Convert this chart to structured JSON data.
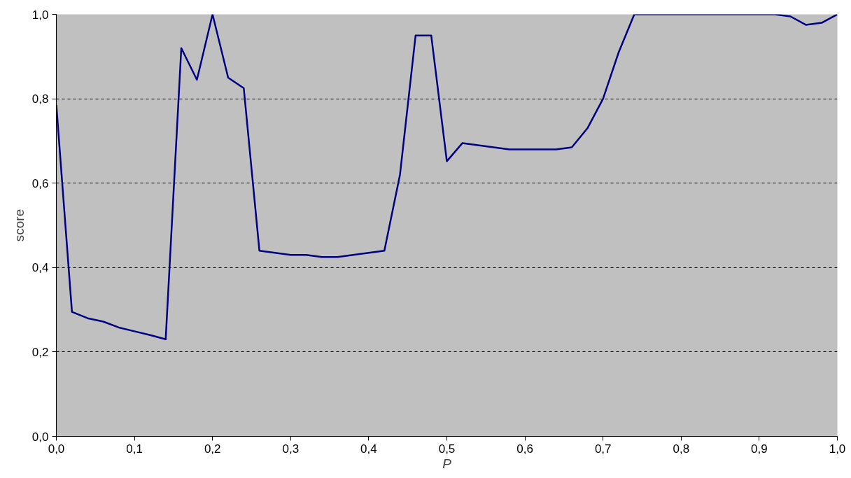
{
  "chart_data": {
    "type": "line",
    "xlabel": "P",
    "ylabel": "score",
    "x": [
      0,
      0.02,
      0.04,
      0.06,
      0.08,
      0.1,
      0.12,
      0.14,
      0.16,
      0.18,
      0.2,
      0.22,
      0.24,
      0.26,
      0.28,
      0.3,
      0.32,
      0.34,
      0.36,
      0.38,
      0.4,
      0.42,
      0.44,
      0.46,
      0.48,
      0.5,
      0.52,
      0.54,
      0.56,
      0.58,
      0.6,
      0.62,
      0.64,
      0.66,
      0.68,
      0.7,
      0.72,
      0.74,
      0.76,
      0.78,
      0.8,
      0.82,
      0.84,
      0.86,
      0.88,
      0.9,
      0.92,
      0.94,
      0.96,
      0.98,
      1.0
    ],
    "series": [
      {
        "color": "#000080",
        "values": [
          0.785,
          0.295,
          0.28,
          0.272,
          0.258,
          0.249,
          0.24,
          0.23,
          0.92,
          0.845,
          1.0,
          0.85,
          0.825,
          0.44,
          0.435,
          0.43,
          0.43,
          0.425,
          0.425,
          0.43,
          0.435,
          0.44,
          0.62,
          0.95,
          0.95,
          0.652,
          0.695,
          0.69,
          0.685,
          0.68,
          0.68,
          0.68,
          0.68,
          0.685,
          0.73,
          0.8,
          0.91,
          1.0,
          1.0,
          1.0,
          1.0,
          1.0,
          1.0,
          1.0,
          1.0,
          1.0,
          1.0,
          0.995,
          0.975,
          0.98,
          1.0
        ]
      }
    ],
    "xlim": [
      0,
      1
    ],
    "ylim": [
      0,
      1
    ],
    "xticks": [
      {
        "value": 0,
        "label": "0,0"
      },
      {
        "value": 0.1,
        "label": "0,1"
      },
      {
        "value": 0.2,
        "label": "0,2"
      },
      {
        "value": 0.3,
        "label": "0,3"
      },
      {
        "value": 0.4,
        "label": "0,4"
      },
      {
        "value": 0.5,
        "label": "0,5"
      },
      {
        "value": 0.6,
        "label": "0,6"
      },
      {
        "value": 0.7,
        "label": "0,7"
      },
      {
        "value": 0.8,
        "label": "0,8"
      },
      {
        "value": 0.9,
        "label": "0,9"
      },
      {
        "value": 1.0,
        "label": "1,0"
      }
    ],
    "yticks": [
      {
        "value": 0,
        "label": "0,0"
      },
      {
        "value": 0.2,
        "label": "0,2"
      },
      {
        "value": 0.4,
        "label": "0,4"
      },
      {
        "value": 0.6,
        "label": "0,6"
      },
      {
        "value": 0.8,
        "label": "0,8"
      },
      {
        "value": 1.0,
        "label": "1,0"
      }
    ],
    "grid": "y"
  }
}
